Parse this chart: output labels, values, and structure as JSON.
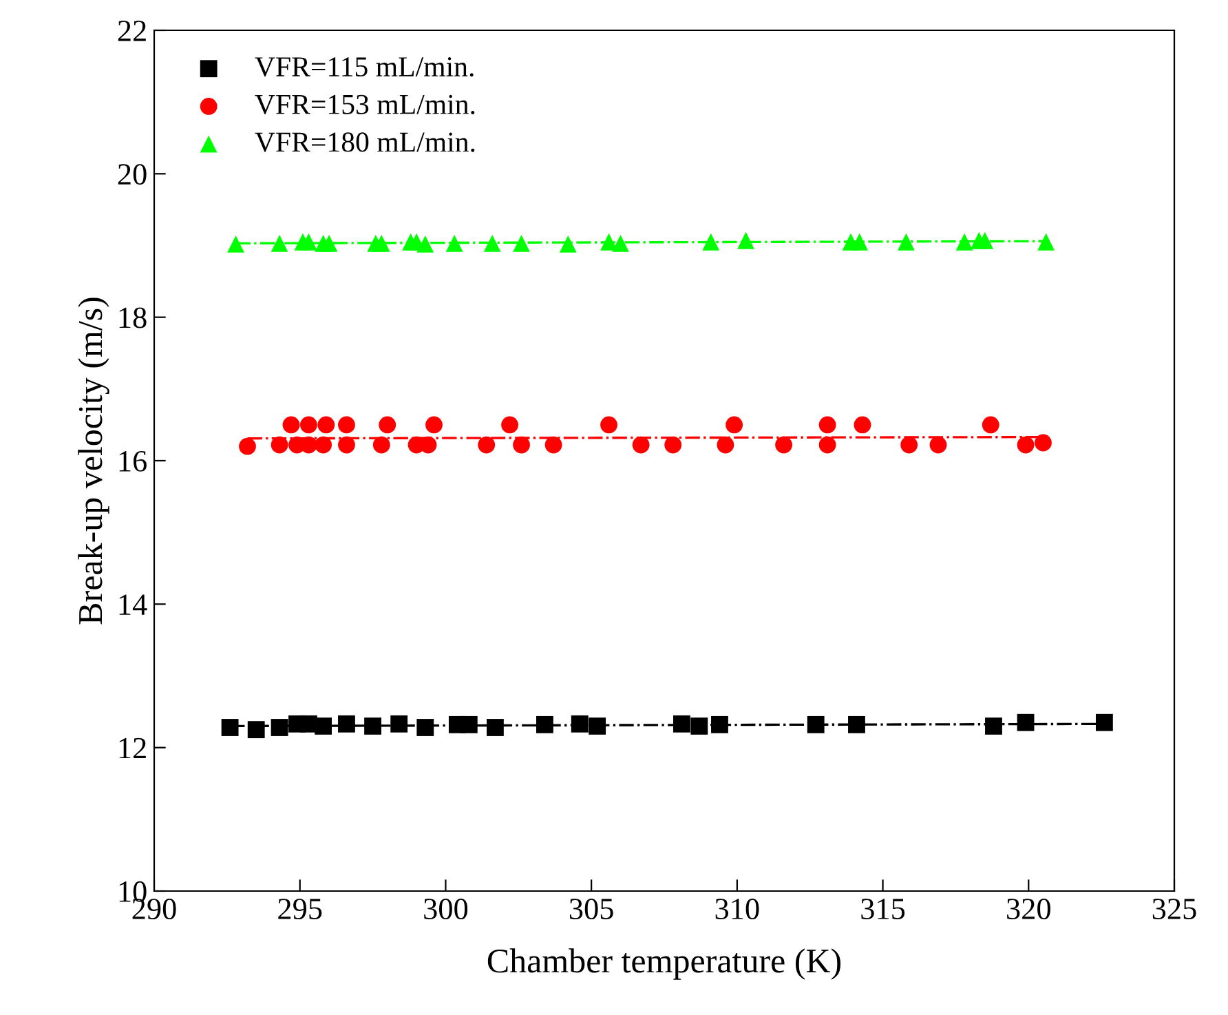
{
  "chart_data": {
    "type": "scatter",
    "xlabel": "Chamber temperature (K)",
    "ylabel": "Break-up velocity (m/s)",
    "xlim": [
      290,
      325
    ],
    "xticks": [
      290,
      295,
      300,
      305,
      310,
      315,
      320,
      325
    ],
    "ylim": [
      10,
      22
    ],
    "yticks": [
      10,
      12,
      14,
      16,
      18,
      20,
      22
    ],
    "grid": false,
    "legend": "top left",
    "series": [
      {
        "name": "VFR=115 mL/min.",
        "color": "#000000",
        "marker": "square",
        "x": [
          292.6,
          293.5,
          294.3,
          294.9,
          295.3,
          295.8,
          296.6,
          297.5,
          298.4,
          299.3,
          300.4,
          300.8,
          301.7,
          303.4,
          304.6,
          305.2,
          308.1,
          308.7,
          309.4,
          312.7,
          314.1,
          318.8,
          319.9,
          322.6
        ],
        "values": [
          12.28,
          12.25,
          12.28,
          12.33,
          12.33,
          12.3,
          12.33,
          12.3,
          12.33,
          12.28,
          12.32,
          12.32,
          12.28,
          12.32,
          12.33,
          12.3,
          12.33,
          12.3,
          12.32,
          12.32,
          12.32,
          12.3,
          12.35,
          12.35
        ]
      },
      {
        "name": "VFR=153 mL/min.",
        "color": "#ff0000",
        "marker": "circle",
        "x": [
          293.2,
          294.3,
          294.7,
          294.9,
          295.3,
          295.3,
          295.8,
          295.9,
          296.6,
          296.6,
          297.6,
          297.8,
          298.0,
          299.0,
          299.4,
          299.6,
          301.4,
          302.2,
          302.6,
          303.7,
          305.6,
          306.7,
          307.8,
          309.6,
          309.9,
          311.6,
          313.1,
          313.1,
          314.3,
          315.9,
          316.9,
          318.7,
          319.9,
          320.5
        ],
        "values": [
          16.2,
          16.22,
          16.5,
          16.22,
          16.5,
          16.22,
          16.22,
          16.5,
          16.5,
          16.22,
          null,
          16.22,
          16.5,
          16.22,
          16.22,
          16.5,
          16.22,
          16.5,
          16.22,
          16.22,
          16.5,
          16.22,
          16.22,
          16.22,
          16.5,
          16.22,
          16.22,
          16.5,
          16.5,
          16.22,
          16.22,
          16.5,
          16.22,
          16.25
        ]
      },
      {
        "name": "VFR=180 mL/min.",
        "color": "#00ff00",
        "marker": "triangle",
        "x": [
          292.8,
          294.3,
          295.1,
          295.3,
          295.8,
          296.0,
          297.6,
          297.8,
          298.8,
          299.0,
          299.3,
          300.3,
          301.6,
          302.6,
          304.2,
          305.6,
          306.0,
          309.1,
          310.3,
          313.9,
          314.2,
          315.8,
          317.8,
          318.3,
          318.5,
          320.6
        ],
        "values": [
          19.02,
          19.03,
          19.05,
          19.05,
          19.03,
          19.03,
          19.03,
          19.03,
          19.05,
          19.05,
          19.02,
          19.03,
          19.03,
          19.03,
          19.02,
          19.05,
          19.03,
          19.05,
          19.07,
          19.05,
          19.05,
          19.05,
          19.05,
          19.07,
          19.07,
          19.05
        ]
      },
      {
        "type": "line",
        "color": "#000000",
        "line_style": "dashdot",
        "x": [
          292.6,
          322.6
        ],
        "values": [
          12.3,
          12.33
        ]
      },
      {
        "type": "line",
        "color": "#ff0000",
        "line_style": "dashdot",
        "x": [
          293.2,
          320.5
        ],
        "values": [
          16.31,
          16.33
        ]
      },
      {
        "type": "line",
        "color": "#00ff00",
        "line_style": "dashdot",
        "x": [
          292.8,
          320.6
        ],
        "values": [
          19.03,
          19.06
        ]
      }
    ]
  }
}
